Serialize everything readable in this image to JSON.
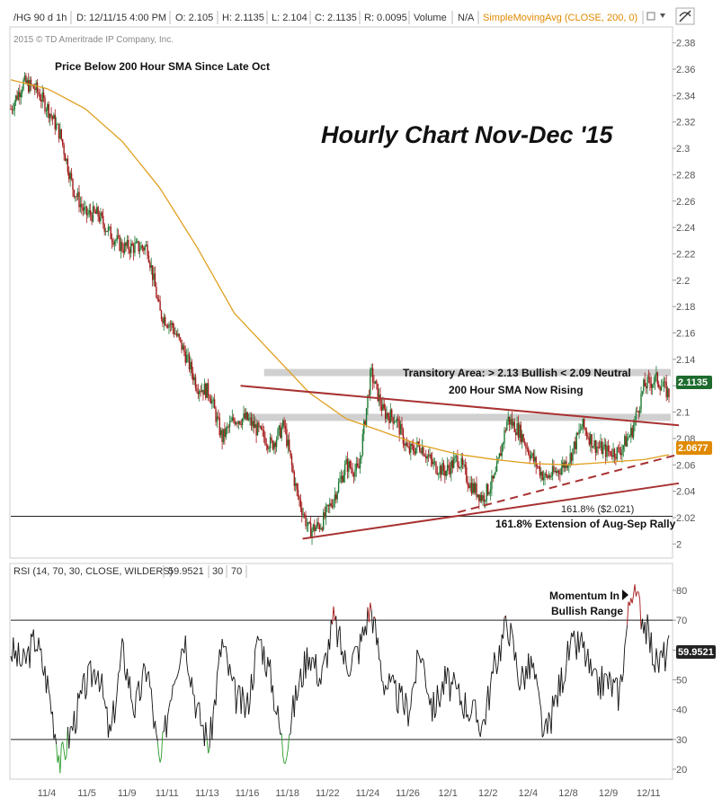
{
  "header": {
    "symbol": "/HG 90 d 1h",
    "date": "D: 12/11/15 4:00 PM",
    "open": "O: 2.105",
    "high": "H: 2.1135",
    "low": "L: 2.104",
    "close": "C: 2.1135",
    "range": "R: 0.0095",
    "volume_label": "Volume",
    "volume_value": "N/A",
    "study": "SimpleMovingAvg (CLOSE, 200, 0)"
  },
  "copyright": "2015 © TD Ameritrade IP Company, Inc.",
  "title": "Hourly Chart Nov-Dec '15",
  "annotations": {
    "sma_note": "Price Below 200 Hour SMA Since Late Oct",
    "transitory": "Transitory Area: > 2.13 Bullish < 2.09 Neutral",
    "sma_rising": "200 Hour SMA Now Rising",
    "fib_value": "161.8%  ($2.021)",
    "fib_label": "161.8% Extension of Aug-Sep Rally",
    "momentum_line1": "Momentum In",
    "momentum_line2": "Bullish Range"
  },
  "badges": {
    "price": "2.1135",
    "sma": "2.0677",
    "rsi": "59.9521",
    "price_color": "#1e6b2e",
    "sma_color": "#e08a00",
    "rsi_color": "#222222"
  },
  "rsi_header": {
    "label": "RSI (14, 70, 30, CLOSE, WILDERS)",
    "value": "59.9521",
    "low": "30",
    "high": "70"
  },
  "chart_data": [
    {
      "type": "candlestick",
      "title": "Hourly Chart Nov-Dec '15",
      "ylim": [
        1.99,
        2.39
      ],
      "yticks": [
        2,
        2.02,
        2.04,
        2.06,
        2.08,
        2.1,
        2.12,
        2.14,
        2.16,
        2.18,
        2.2,
        2.22,
        2.24,
        2.26,
        2.28,
        2.3,
        2.32,
        2.34,
        2.36,
        2.38
      ],
      "ytick_labels": [
        "2",
        "2.02",
        "2.04",
        "2.06",
        "2.08",
        "2.1",
        "2.12",
        "2.14",
        "2.16",
        "2.18",
        "2.2",
        "2.22",
        "2.24",
        "2.26",
        "2.28",
        "2.3",
        "2.32",
        "2.34",
        "2.36",
        "2.38"
      ],
      "xtick_labels": [
        "11/4",
        "11/5",
        "11/9",
        "11/11",
        "11/13",
        "11/16",
        "11/18",
        "11/22",
        "11/24",
        "11/26",
        "12/1",
        "12/2",
        "12/4",
        "12/8",
        "12/9",
        "12/11"
      ],
      "close_path": [
        [
          0,
          2.33
        ],
        [
          1,
          2.35
        ],
        [
          2,
          2.345
        ],
        [
          3,
          2.33
        ],
        [
          4,
          2.31
        ],
        [
          5,
          2.27
        ],
        [
          6,
          2.25
        ],
        [
          7,
          2.25
        ],
        [
          8,
          2.235
        ],
        [
          9,
          2.225
        ],
        [
          10,
          2.225
        ],
        [
          11,
          2.225
        ],
        [
          12,
          2.175
        ],
        [
          13,
          2.165
        ],
        [
          14,
          2.145
        ],
        [
          15,
          2.12
        ],
        [
          16,
          2.115
        ],
        [
          17,
          2.08
        ],
        [
          18,
          2.095
        ],
        [
          19,
          2.095
        ],
        [
          20,
          2.085
        ],
        [
          21,
          2.075
        ],
        [
          22,
          2.09
        ],
        [
          23,
          2.04
        ],
        [
          24,
          2.01
        ],
        [
          25,
          2.015
        ],
        [
          26,
          2.035
        ],
        [
          27,
          2.06
        ],
        [
          28,
          2.055
        ],
        [
          29,
          2.13
        ],
        [
          30,
          2.1
        ],
        [
          31,
          2.095
        ],
        [
          32,
          2.07
        ],
        [
          33,
          2.075
        ],
        [
          34,
          2.06
        ],
        [
          35,
          2.055
        ],
        [
          36,
          2.065
        ],
        [
          37,
          2.045
        ],
        [
          38,
          2.035
        ],
        [
          39,
          2.05
        ],
        [
          40,
          2.095
        ],
        [
          41,
          2.085
        ],
        [
          42,
          2.065
        ],
        [
          43,
          2.05
        ],
        [
          44,
          2.055
        ],
        [
          45,
          2.065
        ],
        [
          46,
          2.09
        ],
        [
          47,
          2.075
        ],
        [
          48,
          2.07
        ],
        [
          49,
          2.07
        ],
        [
          50,
          2.085
        ],
        [
          51,
          2.12
        ],
        [
          52,
          2.125
        ],
        [
          53,
          2.1135
        ]
      ],
      "sma_path": [
        [
          0,
          2.352
        ],
        [
          3,
          2.345
        ],
        [
          6,
          2.33
        ],
        [
          9,
          2.305
        ],
        [
          12,
          2.27
        ],
        [
          15,
          2.225
        ],
        [
          18,
          2.175
        ],
        [
          21,
          2.145
        ],
        [
          24,
          2.115
        ],
        [
          27,
          2.095
        ],
        [
          30,
          2.085
        ],
        [
          33,
          2.075
        ],
        [
          36,
          2.068
        ],
        [
          39,
          2.064
        ],
        [
          42,
          2.061
        ],
        [
          45,
          2.06
        ],
        [
          48,
          2.062
        ],
        [
          51,
          2.064
        ],
        [
          53,
          2.0677
        ]
      ],
      "zones": [
        {
          "price": 2.13,
          "label": "2.13"
        },
        {
          "price": 2.096,
          "label": "2.09"
        }
      ],
      "fib_level": 2.021,
      "trendlines": [
        {
          "style": "solid",
          "from": [
            18.5,
            2.12
          ],
          "to": [
            53.8,
            2.09
          ]
        },
        {
          "style": "solid",
          "from": [
            23.5,
            2.004
          ],
          "to": [
            53.8,
            2.046
          ]
        },
        {
          "style": "dashed",
          "from": [
            36,
            2.024
          ],
          "to": [
            53.8,
            2.068
          ]
        }
      ]
    },
    {
      "type": "line",
      "title": "RSI (14, 70, 30, CLOSE, WILDERS)",
      "ylim": [
        17,
        83
      ],
      "yticks": [
        20,
        30,
        40,
        50,
        60,
        70,
        80
      ],
      "ytick_labels": [
        "20",
        "30",
        "40",
        "50",
        "60",
        "70",
        "80"
      ],
      "overbought": 70,
      "oversold": 30,
      "rsi_path": [
        [
          0,
          60
        ],
        [
          1,
          55
        ],
        [
          2,
          64
        ],
        [
          3,
          48
        ],
        [
          4,
          22
        ],
        [
          5,
          35
        ],
        [
          6,
          48
        ],
        [
          7,
          55
        ],
        [
          8,
          30
        ],
        [
          9,
          60
        ],
        [
          10,
          40
        ],
        [
          11,
          55
        ],
        [
          12,
          20
        ],
        [
          13,
          50
        ],
        [
          14,
          65
        ],
        [
          15,
          40
        ],
        [
          16,
          28
        ],
        [
          17,
          63
        ],
        [
          18,
          45
        ],
        [
          19,
          40
        ],
        [
          20,
          65
        ],
        [
          21,
          50
        ],
        [
          22,
          25
        ],
        [
          23,
          45
        ],
        [
          24,
          60
        ],
        [
          25,
          50
        ],
        [
          26,
          70
        ],
        [
          27,
          55
        ],
        [
          28,
          60
        ],
        [
          29,
          75
        ],
        [
          30,
          50
        ],
        [
          31,
          45
        ],
        [
          32,
          40
        ],
        [
          33,
          60
        ],
        [
          34,
          40
        ],
        [
          35,
          50
        ],
        [
          36,
          45
        ],
        [
          37,
          40
        ],
        [
          38,
          35
        ],
        [
          39,
          55
        ],
        [
          40,
          70
        ],
        [
          41,
          50
        ],
        [
          42,
          55
        ],
        [
          43,
          30
        ],
        [
          44,
          45
        ],
        [
          45,
          60
        ],
        [
          46,
          62
        ],
        [
          47,
          48
        ],
        [
          48,
          50
        ],
        [
          49,
          45
        ],
        [
          50,
          82
        ],
        [
          51,
          70
        ],
        [
          52,
          55
        ],
        [
          53,
          59.95
        ]
      ]
    }
  ]
}
